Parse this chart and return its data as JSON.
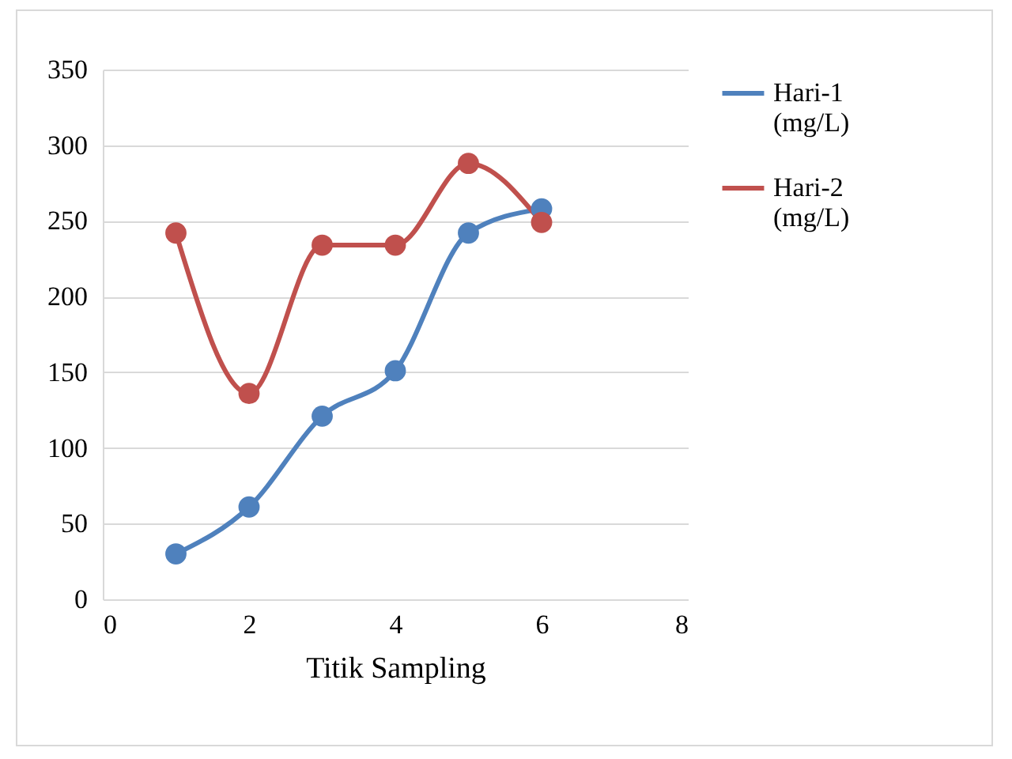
{
  "chart_data": {
    "type": "line",
    "xlabel": "Titik Sampling",
    "x": [
      1,
      2,
      3,
      4,
      5,
      6
    ],
    "series": [
      {
        "name": "Hari-1 (mg/L)",
        "color": "#4f81bd",
        "values": [
          30,
          61,
          121,
          151,
          242,
          258
        ]
      },
      {
        "name": "Hari-2 (mg/L)",
        "color": "#c0504d",
        "values": [
          242,
          136,
          234,
          234,
          288,
          249
        ]
      }
    ],
    "xlim": [
      0,
      8
    ],
    "xticks": [
      0,
      2,
      4,
      6,
      8
    ],
    "ylim": [
      0,
      350
    ],
    "yticks": [
      0,
      50,
      100,
      150,
      200,
      250,
      300,
      350
    ],
    "grid": "y",
    "legend": "right",
    "marker": "circle",
    "line_style": "solid"
  }
}
